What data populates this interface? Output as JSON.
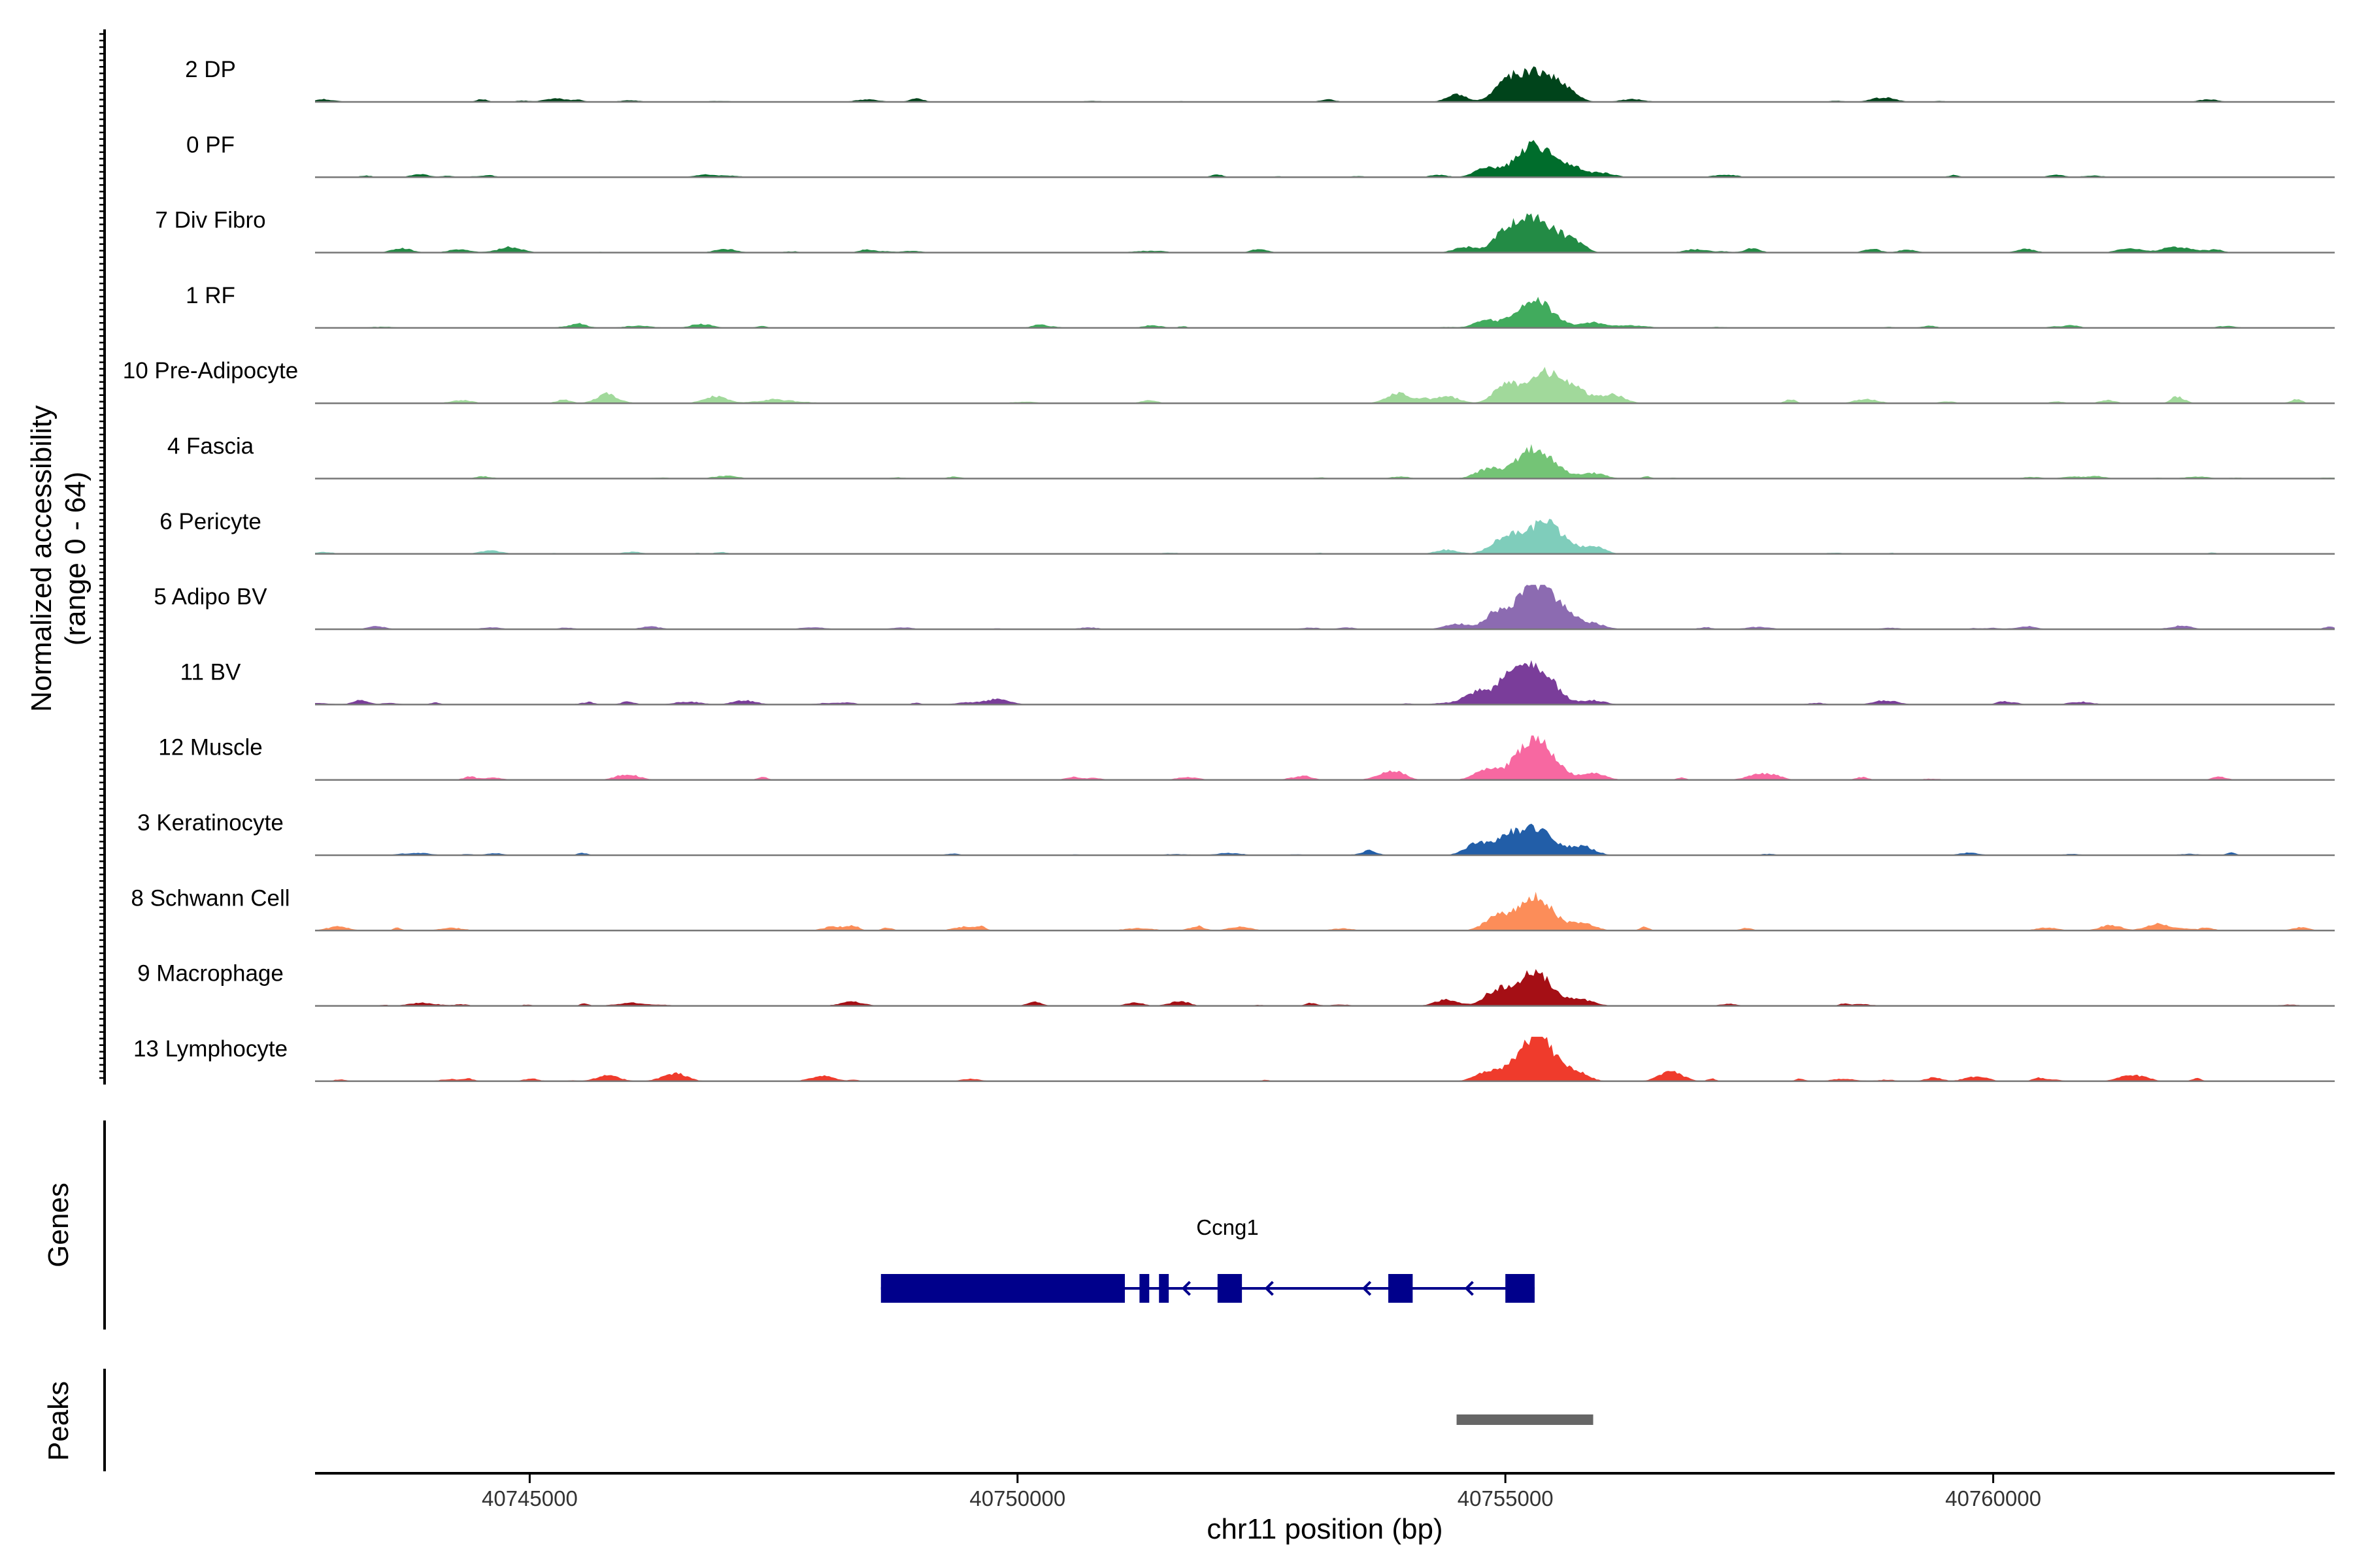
{
  "chart_data": {
    "type": "area",
    "y_axis_label_line1": "Normalized accessibility",
    "y_axis_label_line2": "(range 0 - 64)",
    "ylim": [
      0,
      64
    ],
    "xlabel": "chr11 position (bp)",
    "xlim": [
      40742800,
      40763500
    ],
    "x_ticks": [
      40745000,
      40750000,
      40755000,
      40760000
    ],
    "x_tick_labels": [
      "40745000",
      "40750000",
      "40755000",
      "40760000"
    ],
    "grid": false,
    "tracks": [
      {
        "name": "2 DP",
        "color": "#00441b",
        "peaks": [
          [
            40754500,
            6
          ],
          [
            40755000,
            22
          ],
          [
            40755300,
            44
          ],
          [
            40755600,
            16
          ],
          [
            40756300,
            4
          ]
        ],
        "noise": 1.6,
        "seed": 3
      },
      {
        "name": "0 PF",
        "color": "#006d2c",
        "peaks": [
          [
            40754800,
            12
          ],
          [
            40755300,
            46
          ],
          [
            40755700,
            12
          ],
          [
            40756000,
            6
          ]
        ],
        "noise": 1.2,
        "seed": 7
      },
      {
        "name": "7 Div Fibro",
        "color": "#238b45",
        "peaks": [
          [
            40744800,
            8
          ],
          [
            40754600,
            8
          ],
          [
            40755000,
            24
          ],
          [
            40755300,
            50
          ],
          [
            40755650,
            14
          ],
          [
            40761400,
            6
          ]
        ],
        "noise": 2.0,
        "seed": 11
      },
      {
        "name": "1 RF",
        "color": "#41ab5d",
        "peaks": [
          [
            40754800,
            10
          ],
          [
            40755300,
            40
          ],
          [
            40755900,
            8
          ]
        ],
        "noise": 1.2,
        "seed": 13
      },
      {
        "name": "10 Pre-Adipocyte",
        "color": "#a1d99b",
        "peaks": [
          [
            40745800,
            10
          ],
          [
            40746900,
            10
          ],
          [
            40753900,
            14
          ],
          [
            40754400,
            10
          ],
          [
            40755000,
            22
          ],
          [
            40755400,
            46
          ],
          [
            40755750,
            14
          ],
          [
            40758700,
            6
          ]
        ],
        "noise": 2.4,
        "seed": 17
      },
      {
        "name": "4 Fascia",
        "color": "#74c476",
        "peaks": [
          [
            40754800,
            12
          ],
          [
            40755300,
            44
          ],
          [
            40755900,
            8
          ]
        ],
        "noise": 1.0,
        "seed": 19
      },
      {
        "name": "6 Pericyte",
        "color": "#7fcdbb",
        "peaks": [
          [
            40754400,
            6
          ],
          [
            40755000,
            22
          ],
          [
            40755400,
            46
          ],
          [
            40755900,
            10
          ]
        ],
        "noise": 1.0,
        "seed": 23
      },
      {
        "name": "5 Adipo BV",
        "color": "#8c6bb1",
        "peaks": [
          [
            40754500,
            8
          ],
          [
            40754900,
            18
          ],
          [
            40755300,
            64
          ],
          [
            40755600,
            20
          ],
          [
            40755900,
            8
          ]
        ],
        "noise": 1.2,
        "seed": 29
      },
      {
        "name": "11 BV",
        "color": "#7a3d9a",
        "peaks": [
          [
            40747200,
            6
          ],
          [
            40749800,
            8
          ],
          [
            40754700,
            18
          ],
          [
            40755000,
            26
          ],
          [
            40755300,
            52
          ],
          [
            40755900,
            6
          ],
          [
            40758900,
            6
          ],
          [
            40760900,
            4
          ]
        ],
        "noise": 1.6,
        "seed": 31
      },
      {
        "name": "12 Muscle",
        "color": "#f768a1",
        "peaks": [
          [
            40746000,
            8
          ],
          [
            40753800,
            10
          ],
          [
            40754800,
            14
          ],
          [
            40755300,
            62
          ],
          [
            40755900,
            10
          ],
          [
            40757600,
            6
          ]
        ],
        "noise": 1.4,
        "seed": 37
      },
      {
        "name": "3 Keratinocyte",
        "color": "#225ea8",
        "peaks": [
          [
            40754700,
            14
          ],
          [
            40755000,
            18
          ],
          [
            40755300,
            40
          ],
          [
            40755800,
            12
          ]
        ],
        "noise": 1.2,
        "seed": 41
      },
      {
        "name": "8 Schwann Cell",
        "color": "#fc8d59",
        "peaks": [
          [
            40744200,
            4
          ],
          [
            40754900,
            18
          ],
          [
            40755300,
            48
          ],
          [
            40755800,
            10
          ]
        ],
        "noise": 2.0,
        "seed": 43
      },
      {
        "name": "9 Macrophage",
        "color": "#a50f15",
        "peaks": [
          [
            40748300,
            6
          ],
          [
            40754400,
            8
          ],
          [
            40754900,
            20
          ],
          [
            40755300,
            48
          ],
          [
            40755800,
            8
          ]
        ],
        "noise": 1.6,
        "seed": 47
      },
      {
        "name": "13 Lymphocyte",
        "color": "#ef3b2c",
        "peaks": [
          [
            40745800,
            8
          ],
          [
            40746500,
            8
          ],
          [
            40748000,
            8
          ],
          [
            40754800,
            12
          ],
          [
            40755300,
            64
          ],
          [
            40755700,
            10
          ],
          [
            40756700,
            14
          ],
          [
            40761400,
            8
          ]
        ],
        "noise": 1.8,
        "seed": 53
      }
    ],
    "genes_panel_label": "Genes",
    "gene": {
      "name": "Ccng1",
      "color": "#00008b",
      "strand": "-",
      "start": 40748600,
      "end": 40755300,
      "exons": [
        [
          40748600,
          40751100
        ],
        [
          40751250,
          40751350
        ],
        [
          40751450,
          40751550
        ],
        [
          40752050,
          40752300
        ],
        [
          40753800,
          40754050
        ],
        [
          40755000,
          40755300
        ]
      ],
      "arrows_at": [
        40751700,
        40752550,
        40753550,
        40754600
      ]
    },
    "peaks_panel_label": "Peaks",
    "peak_regions": [
      [
        40754500,
        40755900
      ]
    ],
    "peak_color": "#666666"
  }
}
